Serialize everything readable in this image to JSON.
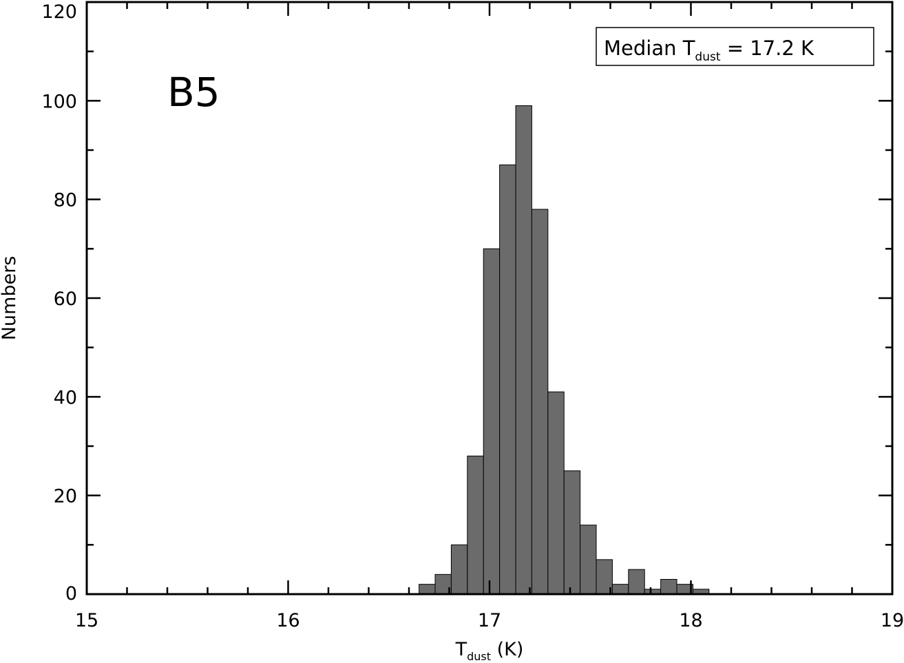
{
  "chart_data": {
    "type": "bar",
    "title": "",
    "panel_label": "B5",
    "annotation": {
      "prefix": "Median T",
      "sub": "dust",
      "suffix": " =  17.2 K"
    },
    "xlabel": {
      "main": "T",
      "sub": "dust",
      "suffix": "  (K)"
    },
    "ylabel": "Numbers",
    "xlim": [
      15,
      19
    ],
    "ylim": [
      0,
      120
    ],
    "x_major_ticks": [
      15,
      16,
      17,
      18,
      19
    ],
    "x_tick_labels": [
      "15",
      "16",
      "17",
      "18",
      "19"
    ],
    "x_minor_step": 0.2,
    "y_major_ticks": [
      0,
      20,
      40,
      60,
      80,
      100,
      120
    ],
    "y_tick_labels": [
      "0",
      "20",
      "40",
      "60",
      "80",
      "100",
      "120"
    ],
    "y_minor_step": 10,
    "bin_width": 0.08,
    "bin_starts": [
      16.65,
      16.73,
      16.81,
      16.89,
      16.97,
      17.05,
      17.13,
      17.21,
      17.29,
      17.37,
      17.45,
      17.53,
      17.61,
      17.69,
      17.77,
      17.85,
      17.93,
      18.01
    ],
    "values": [
      2,
      4,
      10,
      28,
      70,
      87,
      99,
      78,
      41,
      25,
      14,
      7,
      2,
      5,
      1,
      3,
      2,
      1
    ],
    "bar_color": "#6b6b6b",
    "grid": false,
    "legend_position": "top-right"
  }
}
